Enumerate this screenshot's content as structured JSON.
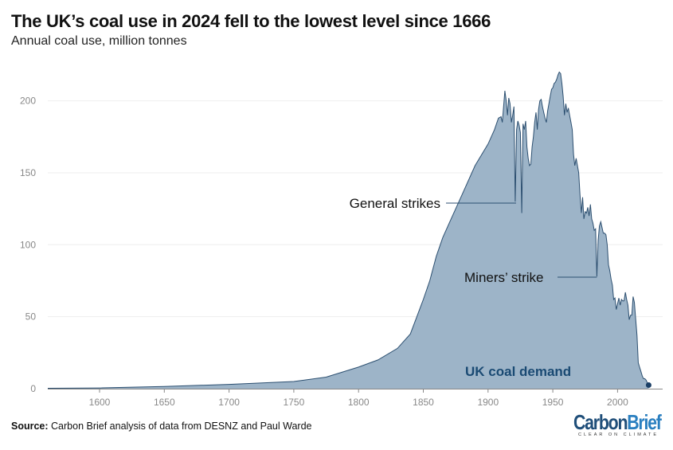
{
  "title": "The UK’s coal use in 2024 fell to the lowest level since 1666",
  "subtitle": "Annual coal use, million tonnes",
  "source_label": "Source:",
  "source_text": "Carbon Brief analysis of data from DESNZ and Paul Warde",
  "logo": {
    "name_a": "Carbon",
    "name_b": "Brief",
    "tagline": "CLEAR ON CLIMATE"
  },
  "colors": {
    "area": "#9db4c8",
    "line": "#2c4f70",
    "label": "#1a4a73",
    "logo": "#1f4e79"
  },
  "chart_data": {
    "type": "area",
    "title": "The UK’s coal use in 2024 fell to the lowest level since 1666",
    "ylabel": "Annual coal use, million tonnes",
    "xlim": [
      1560,
      2030
    ],
    "ylim": [
      0,
      225
    ],
    "xticks": [
      1600,
      1650,
      1700,
      1750,
      1800,
      1850,
      1900,
      1950,
      2000
    ],
    "yticks": [
      0,
      50,
      100,
      150,
      200
    ],
    "grid": "horizontal",
    "series": [
      {
        "name": "UK coal demand",
        "x": [
          1560,
          1600,
          1650,
          1700,
          1750,
          1775,
          1800,
          1815,
          1830,
          1840,
          1845,
          1850,
          1855,
          1860,
          1865,
          1870,
          1880,
          1890,
          1900,
          1905,
          1908,
          1910,
          1911,
          1912,
          1913,
          1914,
          1915,
          1916,
          1917,
          1918,
          1919,
          1920,
          1921,
          1922,
          1923,
          1924,
          1925,
          1926,
          1927,
          1928,
          1929,
          1930,
          1931,
          1932,
          1933,
          1934,
          1935,
          1936,
          1937,
          1938,
          1939,
          1940,
          1941,
          1942,
          1943,
          1944,
          1945,
          1946,
          1947,
          1948,
          1949,
          1950,
          1951,
          1952,
          1953,
          1954,
          1955,
          1956,
          1957,
          1958,
          1959,
          1960,
          1961,
          1962,
          1963,
          1964,
          1965,
          1966,
          1967,
          1968,
          1969,
          1970,
          1971,
          1972,
          1973,
          1974,
          1975,
          1976,
          1977,
          1978,
          1979,
          1980,
          1981,
          1982,
          1983,
          1984,
          1985,
          1986,
          1987,
          1988,
          1989,
          1990,
          1991,
          1992,
          1993,
          1994,
          1995,
          1996,
          1997,
          1998,
          1999,
          2000,
          2001,
          2002,
          2003,
          2004,
          2005,
          2006,
          2007,
          2008,
          2009,
          2010,
          2011,
          2012,
          2013,
          2014,
          2015,
          2016,
          2017,
          2018,
          2019,
          2020,
          2021,
          2022,
          2023,
          2024
        ],
        "y": [
          0.3,
          0.5,
          1.5,
          3,
          5,
          8,
          15,
          20,
          28,
          38,
          50,
          62,
          75,
          92,
          105,
          115,
          135,
          155,
          170,
          180,
          188,
          189,
          185,
          196,
          207,
          200,
          190,
          202,
          198,
          185,
          190,
          196,
          130,
          180,
          186,
          183,
          178,
          122,
          184,
          180,
          186,
          168,
          160,
          155,
          156,
          168,
          175,
          185,
          192,
          180,
          194,
          200,
          201,
          196,
          192,
          188,
          185,
          193,
          198,
          203,
          208,
          209,
          212,
          213,
          215,
          218,
          220,
          219,
          212,
          203,
          190,
          198,
          192,
          195,
          190,
          185,
          180,
          163,
          155,
          160,
          155,
          150,
          135,
          122,
          133,
          118,
          123,
          122,
          126,
          120,
          128,
          118,
          115,
          110,
          111,
          78,
          103,
          113,
          116,
          112,
          108,
          108,
          107,
          100,
          86,
          82,
          76,
          72,
          62,
          63,
          55,
          59,
          63,
          58,
          62,
          61,
          61,
          67,
          62,
          58,
          48,
          51,
          51,
          64,
          60,
          48,
          37,
          18,
          15,
          12,
          9,
          7,
          7,
          6,
          4,
          2.5
        ]
      }
    ],
    "annotations": [
      {
        "text": "General strikes",
        "years": [
          1921,
          1926
        ]
      },
      {
        "text": "Miners’ strike",
        "years": [
          1984
        ]
      },
      {
        "text": "UK coal demand"
      }
    ]
  }
}
